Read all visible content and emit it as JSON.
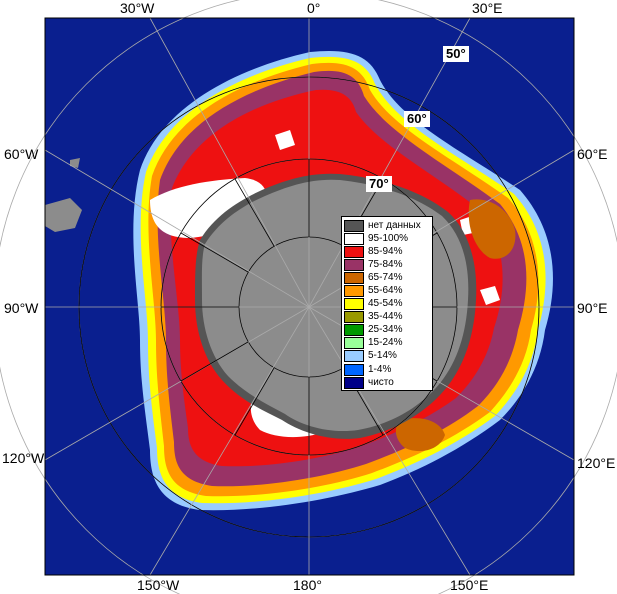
{
  "longitude_labels": {
    "top": [
      "30°W",
      "0°",
      "30°E"
    ],
    "left": [
      "60°W",
      "90°W",
      "120°W"
    ],
    "right": [
      "60°E",
      "90°E",
      "120°E"
    ],
    "bottom": [
      "150°W",
      "180°",
      "150°E"
    ]
  },
  "latitude_labels": [
    "50°",
    "60°",
    "70°"
  ],
  "legend": [
    {
      "label": "нет данных",
      "color": "#555555"
    },
    {
      "label": "95-100%",
      "color": "#ffffff"
    },
    {
      "label": "85-94%",
      "color": "#ee1111"
    },
    {
      "label": "75-84%",
      "color": "#993366"
    },
    {
      "label": "65-74%",
      "color": "#cc6600"
    },
    {
      "label": "55-64%",
      "color": "#ff9900"
    },
    {
      "label": "45-54%",
      "color": "#ffff00"
    },
    {
      "label": "35-44%",
      "color": "#999900"
    },
    {
      "label": "25-34%",
      "color": "#009900"
    },
    {
      "label": "15-24%",
      "color": "#99ff99"
    },
    {
      "label": "5-14%",
      "color": "#99ccff"
    },
    {
      "label": "1-4%",
      "color": "#0066ff"
    },
    {
      "label": "чисто",
      "color": "#000088"
    }
  ],
  "colors": {
    "ocean": "#0a1f8f",
    "land": "#8c8c8c",
    "no_data": "#555555",
    "grid": "#aaaaaa"
  }
}
